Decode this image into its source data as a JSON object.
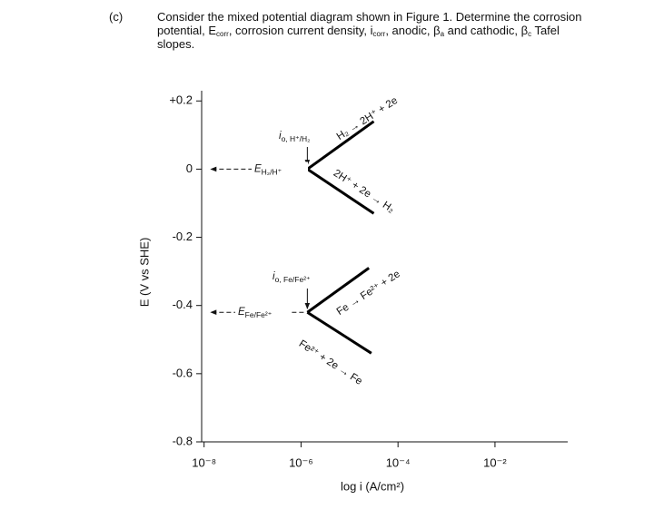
{
  "question": {
    "label": "(c)",
    "parts": [
      "Consider the mixed potential diagram shown in Figure 1. Determine the corrosion potential, E",
      "corr",
      ", corrosion current density, i",
      "corr",
      ", anodic, β",
      "a",
      " and cathodic, β",
      "c",
      " Tafel slopes."
    ]
  },
  "chart_data": {
    "type": "line",
    "x_label": "log i (A/cm²)",
    "y_label": "E (V vs SHE)",
    "xlim": [
      -8.05,
      -0.5
    ],
    "xticks": [
      {
        "value": -8,
        "label": "10⁻⁸"
      },
      {
        "value": -6,
        "label": "10⁻⁶"
      },
      {
        "value": -4,
        "label": "10⁻⁴"
      },
      {
        "value": -2,
        "label": "10⁻²"
      }
    ],
    "ylim": [
      -0.8,
      0.23
    ],
    "yticks": [
      {
        "value": 0.2,
        "label": "+0.2"
      },
      0,
      -0.2,
      -0.4,
      -0.6,
      -0.8
    ],
    "series": [
      {
        "color": "#000000",
        "x": [
          -5.87,
          -4.5
        ],
        "values": [
          0,
          0.14
        ]
      },
      {
        "color": "#000000",
        "x": [
          -5.87,
          -4.5
        ],
        "values": [
          0,
          -0.13
        ]
      },
      {
        "color": "#000000",
        "x": [
          -5.87,
          -4.6
        ],
        "values": [
          -0.42,
          -0.29
        ]
      },
      {
        "color": "#000000",
        "x": [
          -5.87,
          -4.55
        ],
        "values": [
          -0.42,
          -0.54
        ]
      }
    ],
    "annotations": [
      {
        "text": "i",
        "sub": "o, H⁺/H₂"
      },
      {
        "text": "H₂ → 2H⁺ + 2e"
      },
      {
        "text": "E",
        "sub": "H₂/H⁺"
      },
      {
        "text": "2H⁺ + 2e → H₂"
      },
      {
        "text": "i",
        "sub": "o, Fe/Fe²⁺"
      },
      {
        "text": "Fe → Fe²⁺ + 2e"
      },
      {
        "text": "E",
        "sub": "Fe/Fe²⁺"
      },
      {
        "text": "Fe²⁺ + 2e → Fe"
      }
    ]
  }
}
